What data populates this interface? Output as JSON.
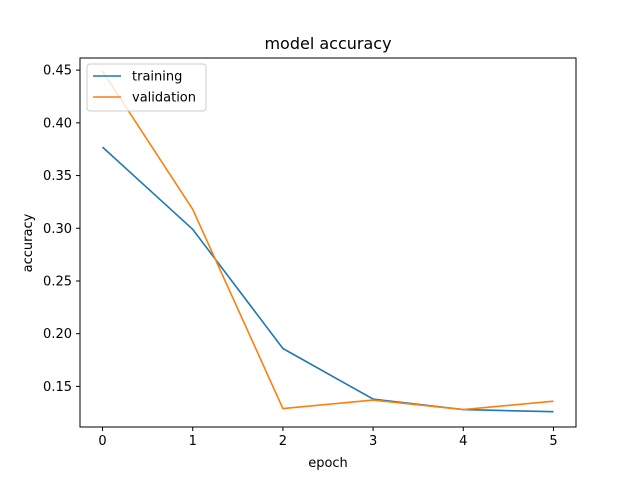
{
  "chart_data": {
    "type": "line",
    "title": "model accuracy",
    "xlabel": "epoch",
    "ylabel": "accuracy",
    "x": [
      0,
      1,
      2,
      3,
      4,
      5
    ],
    "xticks": [
      "0",
      "1",
      "2",
      "3",
      "4",
      "5"
    ],
    "yticks": [
      "0.15",
      "0.20",
      "0.25",
      "0.30",
      "0.35",
      "0.40",
      "0.45"
    ],
    "xlim": [
      -0.25,
      5.25
    ],
    "ylim": [
      0.1115,
      0.4615
    ],
    "grid": false,
    "legend_position": "upper-left",
    "series": [
      {
        "name": "training",
        "color": "#1f77b4",
        "values": [
          0.377,
          0.299,
          0.186,
          0.138,
          0.128,
          0.126
        ]
      },
      {
        "name": "validation",
        "color": "#ff7f0e",
        "values": [
          0.449,
          0.318,
          0.129,
          0.137,
          0.128,
          0.136
        ]
      }
    ]
  }
}
